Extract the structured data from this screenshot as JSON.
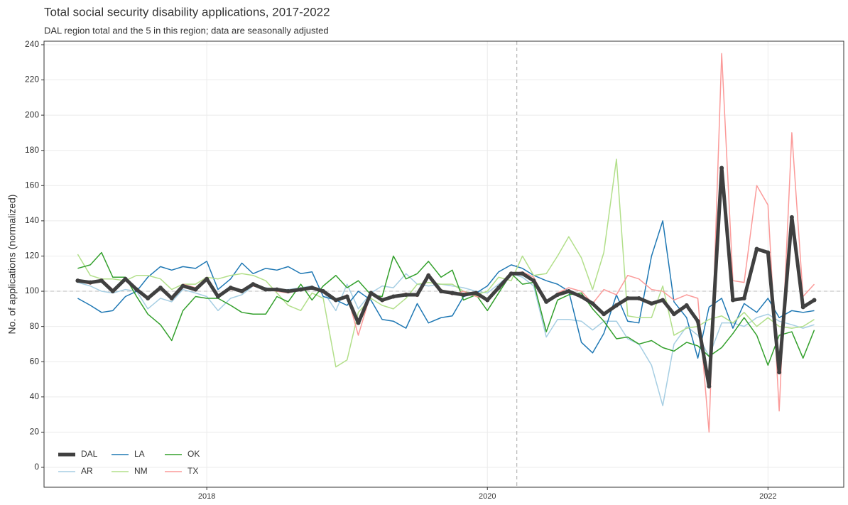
{
  "chart_data": {
    "type": "line",
    "title": "Total social security disability applications, 2017-2022",
    "subtitle": "DAL region total and the 5 in this region; data are seasonally adjusted",
    "y_label": "No. of applications (normalized)",
    "x": [
      2017.08,
      2017.17,
      2017.25,
      2017.33,
      2017.42,
      2017.5,
      2017.58,
      2017.67,
      2017.75,
      2017.83,
      2017.92,
      2018,
      2018.08,
      2018.17,
      2018.25,
      2018.33,
      2018.42,
      2018.5,
      2018.58,
      2018.67,
      2018.75,
      2018.83,
      2018.92,
      2019,
      2019.08,
      2019.17,
      2019.25,
      2019.33,
      2019.42,
      2019.5,
      2019.58,
      2019.67,
      2019.75,
      2019.83,
      2019.92,
      2020,
      2020.08,
      2020.17,
      2020.25,
      2020.33,
      2020.42,
      2020.5,
      2020.58,
      2020.67,
      2020.75,
      2020.83,
      2020.92,
      2021,
      2021.08,
      2021.17,
      2021.25,
      2021.33,
      2021.42,
      2021.5,
      2021.58,
      2021.67,
      2021.75,
      2021.83,
      2021.92,
      2022,
      2022.08,
      2022.17,
      2022.25,
      2022.33
    ],
    "series": [
      {
        "name": "DAL",
        "color": "#404040",
        "width": 5,
        "markers": true,
        "values": [
          106,
          105,
          106,
          100,
          107,
          101,
          96,
          102,
          96,
          103,
          101,
          107,
          97,
          102,
          100,
          104,
          101,
          101,
          100,
          101,
          102,
          100,
          95,
          97,
          82,
          99,
          95,
          97,
          98,
          98,
          109,
          100,
          99,
          98,
          99,
          95,
          102,
          110,
          110,
          106,
          94,
          98,
          100,
          97,
          93,
          87,
          92,
          96,
          96,
          93,
          95,
          87,
          92,
          83,
          46,
          170,
          95,
          96,
          124,
          122,
          54,
          142,
          91,
          95
        ]
      },
      {
        "name": "AR",
        "color": "#a6cee3",
        "width": 1.5,
        "markers": false,
        "values": [
          105,
          103,
          100,
          99,
          101,
          100,
          90,
          96,
          94,
          101,
          99,
          97,
          89,
          96,
          98,
          103,
          102,
          101,
          101,
          102,
          103,
          100,
          89,
          104,
          90,
          99,
          103,
          102,
          110,
          104,
          103,
          104,
          103,
          102,
          100,
          99,
          104,
          110,
          108,
          103,
          74,
          84,
          84,
          83,
          78,
          83,
          83,
          73,
          70,
          58,
          35,
          70,
          80,
          75,
          63,
          82,
          82,
          80,
          85,
          87,
          83,
          81,
          79,
          81
        ]
      },
      {
        "name": "LA",
        "color": "#1f78b4",
        "width": 1.5,
        "markers": false,
        "values": [
          96,
          92,
          88,
          89,
          97,
          100,
          108,
          114,
          112,
          114,
          113,
          117,
          101,
          107,
          116,
          110,
          113,
          112,
          114,
          110,
          111,
          97,
          95,
          92,
          100,
          95,
          84,
          83,
          79,
          93,
          82,
          85,
          86,
          97,
          99,
          103,
          111,
          115,
          113,
          109,
          106,
          104,
          100,
          71,
          65,
          76,
          98,
          83,
          82,
          120,
          140,
          94,
          85,
          62,
          91,
          96,
          79,
          93,
          88,
          96,
          85,
          89,
          88,
          89
        ]
      },
      {
        "name": "NM",
        "color": "#b2df8a",
        "width": 1.5,
        "markers": false,
        "values": [
          121,
          109,
          107,
          107,
          106,
          109,
          109,
          107,
          101,
          104,
          104,
          108,
          107,
          109,
          110,
          109,
          106,
          99,
          92,
          89,
          99,
          96,
          57,
          61,
          88,
          96,
          92,
          90,
          96,
          104,
          105,
          104,
          104,
          100,
          98,
          100,
          108,
          106,
          120,
          109,
          110,
          120,
          131,
          119,
          101,
          122,
          175,
          86,
          85,
          85,
          103,
          75,
          79,
          80,
          84,
          86,
          82,
          88,
          80,
          85,
          80,
          79,
          80,
          84
        ]
      },
      {
        "name": "OK",
        "color": "#33a02c",
        "width": 1.5,
        "markers": false,
        "values": [
          113,
          115,
          122,
          108,
          108,
          97,
          87,
          81,
          72,
          89,
          97,
          96,
          96,
          92,
          88,
          87,
          87,
          97,
          94,
          104,
          95,
          103,
          109,
          102,
          106,
          98,
          97,
          120,
          107,
          110,
          117,
          108,
          112,
          95,
          98,
          89,
          99,
          110,
          104,
          105,
          77,
          95,
          98,
          99,
          90,
          83,
          73,
          74,
          70,
          72,
          68,
          66,
          71,
          69,
          63,
          68,
          76,
          85,
          75,
          58,
          75,
          77,
          62,
          78
        ]
      },
      {
        "name": "TX",
        "color": "#fb9a99",
        "width": 1.5,
        "markers": false,
        "values": [
          106,
          104,
          107,
          101,
          106,
          101,
          97,
          101,
          97,
          104,
          102,
          108,
          98,
          101,
          100,
          103,
          101,
          100,
          99,
          101,
          102,
          99,
          95,
          98,
          75,
          99,
          94,
          97,
          99,
          97,
          110,
          101,
          98,
          100,
          97,
          96,
          101,
          110,
          111,
          108,
          94,
          99,
          102,
          100,
          93,
          101,
          98,
          109,
          107,
          101,
          100,
          95,
          98,
          96,
          20,
          235,
          106,
          105,
          160,
          149,
          32,
          190,
          97,
          104
        ]
      }
    ],
    "xlim": [
      2016.84,
      2022.54
    ],
    "xticks": [
      2018,
      2020,
      2022
    ],
    "ylim": [
      -11.3,
      242
    ],
    "yticks": [
      0,
      20,
      40,
      60,
      80,
      100,
      120,
      140,
      160,
      180,
      200,
      220,
      240
    ],
    "grid": true,
    "legend": "bottom-left",
    "reference_lines": {
      "x": 2020.21,
      "y": 100
    }
  }
}
